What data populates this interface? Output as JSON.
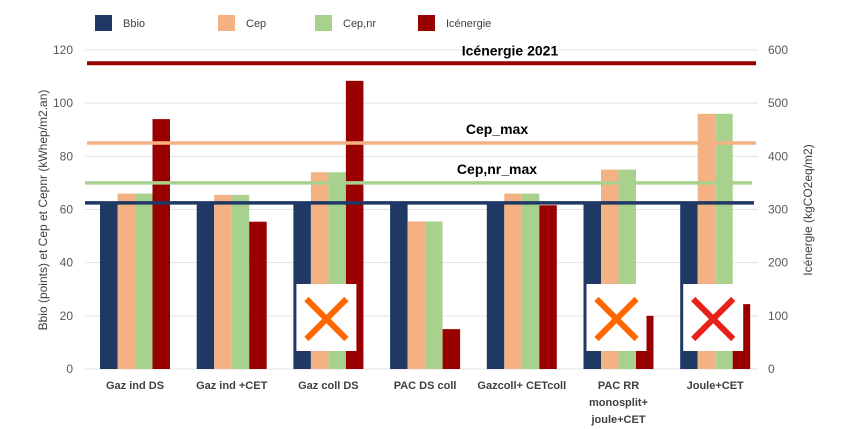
{
  "chart_data": {
    "type": "bar",
    "title": "",
    "categories": [
      "Gaz ind DS",
      "Gaz ind +CET",
      "Gaz coll DS",
      "PAC DS coll",
      "Gazcoll+ CETcoll",
      "PAC RR monosplit+ joule+CET",
      "Joule+CET"
    ],
    "category_lines": [
      [
        "Gaz ind DS"
      ],
      [
        "Gaz ind +CET"
      ],
      [
        "Gaz coll DS"
      ],
      [
        "PAC DS coll"
      ],
      [
        "Gazcoll+ CETcoll"
      ],
      [
        "PAC RR",
        "monosplit+",
        "joule+CET"
      ],
      [
        "Joule+CET"
      ]
    ],
    "series": [
      {
        "name": "Bbio",
        "color": "#1f3864",
        "axis": "left",
        "values": [
          62,
          62,
          62,
          62,
          62,
          62,
          62
        ]
      },
      {
        "name": "Cep",
        "color": "#f4b183",
        "axis": "left",
        "values": [
          66,
          65.5,
          74,
          55.5,
          66,
          75,
          96
        ]
      },
      {
        "name": "Cep,nr",
        "color": "#a9d18e",
        "axis": "left",
        "values": [
          66,
          65.5,
          74,
          55.5,
          66,
          75,
          96
        ]
      },
      {
        "name": "Icénergie",
        "color": "#990000",
        "axis": "right",
        "values": [
          470,
          277,
          542,
          75,
          308,
          100,
          122
        ]
      }
    ],
    "reference_lines": [
      {
        "label": "Icénergie 2021",
        "value": 115,
        "axis": "left",
        "color": "#990000"
      },
      {
        "label": "Cep_max",
        "value": 85,
        "axis": "left",
        "color": "#f4b183"
      },
      {
        "label": "Cep,nr_max",
        "value": 70,
        "axis": "left",
        "color": "#a9d18e"
      },
      {
        "label": "",
        "value": 62.5,
        "axis": "left",
        "color": "#1f3864"
      }
    ],
    "markers": [
      {
        "category_index": 2,
        "symbol": "cross",
        "color": "#ff6600"
      },
      {
        "category_index": 5,
        "symbol": "cross",
        "color": "#ff6600"
      },
      {
        "category_index": 6,
        "symbol": "cross",
        "color": "#e8211b"
      }
    ],
    "ylabel": "Bbio (points) et Cep et Cepnr (kWhep/m2.an)",
    "y2label": "Icénergie  (kgCO2eq/m2)",
    "ylim": [
      0,
      120
    ],
    "y2lim": [
      0,
      600
    ],
    "yticks": [
      "0",
      "20",
      "40",
      "60",
      "80",
      "100",
      "120"
    ],
    "y2ticks": [
      "0",
      "100",
      "200",
      "300",
      "400",
      "500",
      "600"
    ],
    "grid": true,
    "legend_position": "top"
  }
}
